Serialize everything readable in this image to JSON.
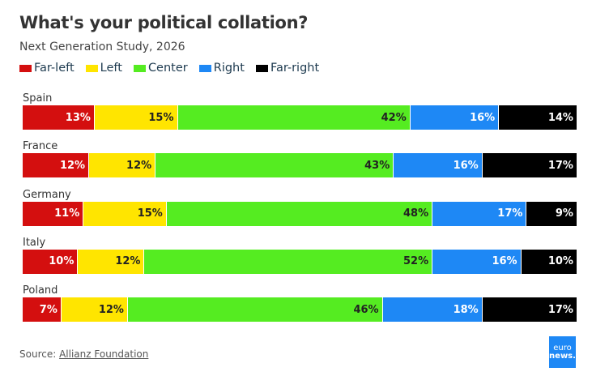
{
  "chart_data": {
    "type": "bar",
    "orientation": "horizontal-stacked-100",
    "title": "What's your political collation?",
    "subtitle": "Next Generation Study, 2026",
    "categories": [
      "Spain",
      "France",
      "Germany",
      "Italy",
      "Poland"
    ],
    "series": [
      {
        "name": "Far-left",
        "color": "#d40f0f",
        "values": [
          13,
          12,
          11,
          10,
          7
        ]
      },
      {
        "name": "Left",
        "color": "#ffe500",
        "values": [
          15,
          12,
          15,
          12,
          12
        ]
      },
      {
        "name": "Center",
        "color": "#55ec21",
        "values": [
          42,
          43,
          48,
          52,
          46
        ]
      },
      {
        "name": "Right",
        "color": "#1e88f5",
        "values": [
          16,
          16,
          17,
          16,
          18
        ]
      },
      {
        "name": "Far-right",
        "color": "#000000",
        "values": [
          14,
          17,
          9,
          10,
          17
        ]
      }
    ],
    "legend_position": "top-left",
    "unit": "%"
  },
  "source": {
    "label": "Source:",
    "link": "Allianz Foundation"
  },
  "logo": {
    "line1": "euro",
    "line2": "news."
  }
}
